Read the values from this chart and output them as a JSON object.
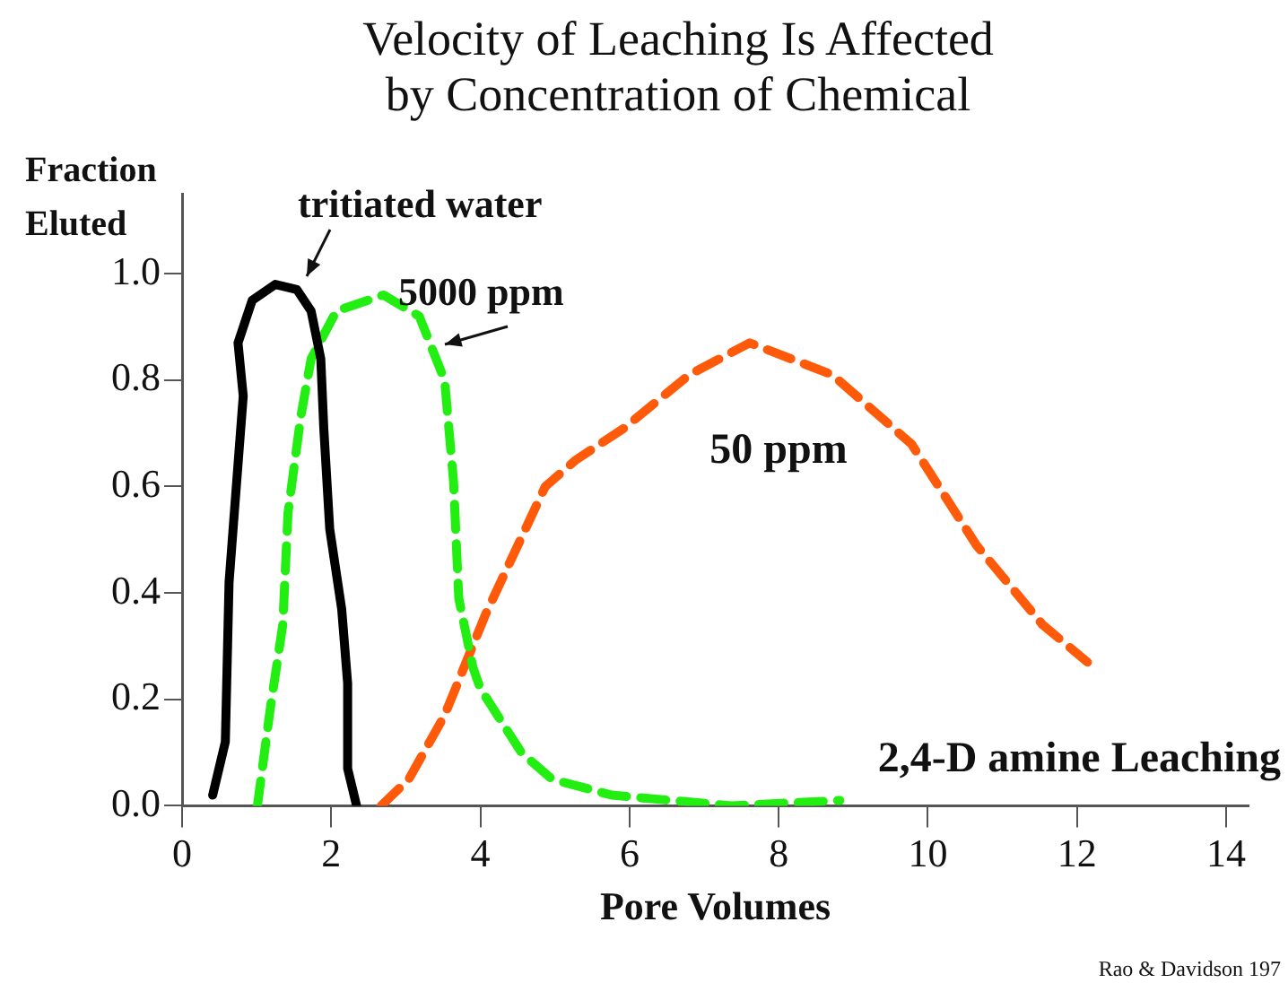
{
  "chart_data": {
    "type": "line",
    "title": "Velocity of Leaching Is Affected\nby Concentration of Chemical",
    "xlabel": "Pore Volumes",
    "ylabel": "Fraction\nEluted",
    "xlim": [
      0,
      14.3
    ],
    "xticks": [
      0,
      2,
      4,
      6,
      8,
      10,
      12,
      14
    ],
    "ylim": [
      0,
      1.15
    ],
    "yticks": [
      {
        "value": 0,
        "label": "0.0"
      },
      {
        "value": 0.2,
        "label": "0.2"
      },
      {
        "value": 0.4,
        "label": "0.4"
      },
      {
        "value": 0.6,
        "label": "0.6"
      },
      {
        "value": 0.8,
        "label": "0.8"
      },
      {
        "value": 1,
        "label": "1.0"
      }
    ],
    "grid": false,
    "legend": false,
    "marker": "none",
    "series": [
      {
        "color": "#000000",
        "line_style": "solid",
        "x": [
          0.41,
          0.58,
          0.63,
          0.7,
          0.82,
          0.75,
          0.94,
          1.25,
          1.54,
          1.73,
          1.86,
          1.9,
          1.98,
          2.14,
          2.22,
          2.22,
          2.34
        ],
        "values": [
          0.02,
          0.12,
          0.42,
          0.55,
          0.77,
          0.87,
          0.95,
          0.98,
          0.97,
          0.93,
          0.84,
          0.71,
          0.52,
          0.37,
          0.23,
          0.07,
          0.0
        ]
      },
      {
        "color": "#22ee11",
        "line_style": "dashed",
        "x": [
          1.01,
          1.18,
          1.35,
          1.42,
          1.59,
          1.73,
          2.07,
          2.7,
          3.18,
          3.52,
          3.64,
          3.71,
          3.9,
          4.0,
          4.55,
          4.96,
          5.76,
          7.37,
          8.82
        ],
        "values": [
          0.0,
          0.18,
          0.34,
          0.55,
          0.73,
          0.84,
          0.93,
          0.96,
          0.92,
          0.8,
          0.61,
          0.39,
          0.26,
          0.22,
          0.1,
          0.05,
          0.02,
          0.0,
          0.01
        ]
      },
      {
        "color": "#ff5a0a",
        "line_style": "dashed",
        "x": [
          2.67,
          3.04,
          3.52,
          4.07,
          4.87,
          5.28,
          5.93,
          6.8,
          7.61,
          8.72,
          9.78,
          10.65,
          11.54,
          12.14
        ],
        "values": [
          0.0,
          0.05,
          0.17,
          0.36,
          0.6,
          0.65,
          0.71,
          0.81,
          0.87,
          0.81,
          0.68,
          0.49,
          0.34,
          0.27
        ]
      }
    ],
    "annotations": [
      "tritiated water",
      "5000 ppm",
      "50 ppm",
      "2,4-D amine Leaching",
      "Rao & Davidson 197"
    ]
  }
}
